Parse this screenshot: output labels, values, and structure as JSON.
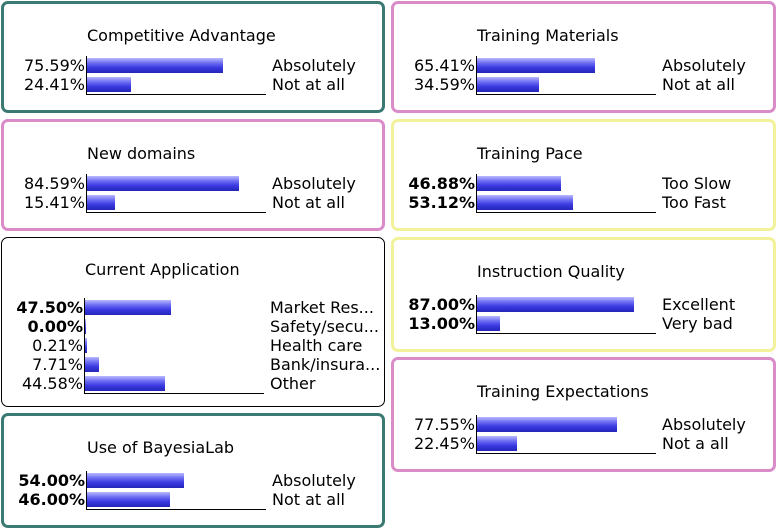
{
  "nodes": [
    {
      "title": "Competitive Advantage",
      "border_color": "#3a7a72",
      "states": [
        {
          "pct": "75.59%",
          "value": 75.59,
          "label": "Absolutely",
          "bold": false
        },
        {
          "pct": "24.41%",
          "value": 24.41,
          "label": "Not at all",
          "bold": false
        }
      ]
    },
    {
      "title": "Training Materials",
      "border_color": "#d98cc8",
      "states": [
        {
          "pct": "65.41%",
          "value": 65.41,
          "label": "Absolutely",
          "bold": false
        },
        {
          "pct": "34.59%",
          "value": 34.59,
          "label": "Not at all",
          "bold": false
        }
      ]
    },
    {
      "title": "New domains",
      "border_color": "#d98cc8",
      "states": [
        {
          "pct": "84.59%",
          "value": 84.59,
          "label": "Absolutely",
          "bold": false
        },
        {
          "pct": "15.41%",
          "value": 15.41,
          "label": "Not at all",
          "bold": false
        }
      ]
    },
    {
      "title": "Training Pace",
      "border_color": "#f2f29a",
      "states": [
        {
          "pct": "46.88%",
          "value": 46.88,
          "label": "Too Slow",
          "bold": true
        },
        {
          "pct": "53.12%",
          "value": 53.12,
          "label": "Too Fast",
          "bold": true
        }
      ]
    },
    {
      "title": "Current Application",
      "border_color": "#000000",
      "states": [
        {
          "pct": "47.50%",
          "value": 47.5,
          "label": "Market Res...",
          "bold": true
        },
        {
          "pct": "0.00%",
          "value": 0.0,
          "label": "Safety/secu...",
          "bold": true
        },
        {
          "pct": "0.21%",
          "value": 0.21,
          "label": "Health care",
          "bold": false
        },
        {
          "pct": "7.71%",
          "value": 7.71,
          "label": "Bank/insura...",
          "bold": false
        },
        {
          "pct": "44.58%",
          "value": 44.58,
          "label": "Other",
          "bold": false
        }
      ]
    },
    {
      "title": "Instruction Quality",
      "border_color": "#f2f29a",
      "states": [
        {
          "pct": "87.00%",
          "value": 87.0,
          "label": "Excellent",
          "bold": true
        },
        {
          "pct": "13.00%",
          "value": 13.0,
          "label": "Very bad",
          "bold": true
        }
      ]
    },
    {
      "title": "Training Expectations",
      "border_color": "#d98cc8",
      "states": [
        {
          "pct": "77.55%",
          "value": 77.55,
          "label": "Absolutely",
          "bold": false
        },
        {
          "pct": "22.45%",
          "value": 22.45,
          "label": "Not a all",
          "bold": false
        }
      ]
    },
    {
      "title": "Use of BayesiaLab",
      "border_color": "#3a7a72",
      "states": [
        {
          "pct": "54.00%",
          "value": 54.0,
          "label": "Absolutely",
          "bold": true
        },
        {
          "pct": "46.00%",
          "value": 46.0,
          "label": "Not at all",
          "bold": true
        }
      ]
    }
  ]
}
